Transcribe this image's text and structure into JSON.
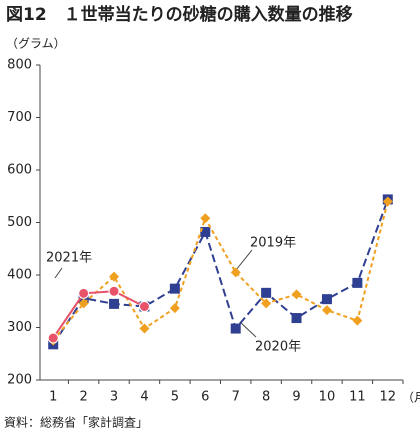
{
  "chart_data": {
    "type": "line",
    "title": "図12　１世帯当たりの砂糖の購入数量の推移",
    "ylabel": "（グラム）",
    "xlabel": "（月）",
    "source": "資料：総務省「家計調査」",
    "categories": [
      "1",
      "2",
      "3",
      "4",
      "5",
      "6",
      "7",
      "8",
      "9",
      "10",
      "11",
      "12"
    ],
    "series": [
      {
        "name": "2020年",
        "color": "#2f3f91",
        "marker": "square",
        "dash": "8,4",
        "values": [
          268,
          356,
          345,
          340,
          374,
          482,
          298,
          366,
          318,
          354,
          385,
          544
        ]
      },
      {
        "name": "2019年",
        "color": "#f0a020",
        "marker": "diamond",
        "dash": "4,3",
        "values": [
          275,
          346,
          397,
          298,
          337,
          508,
          405,
          346,
          363,
          333,
          313,
          540
        ]
      },
      {
        "name": "2021年",
        "color": "#e8536a",
        "marker": "circle",
        "dash": null,
        "values": [
          280,
          365,
          369,
          340,
          null,
          null,
          null,
          null,
          null,
          null,
          null,
          null
        ]
      }
    ],
    "ylim": [
      200,
      800
    ],
    "yticks": [
      200,
      300,
      400,
      500,
      600,
      700,
      800
    ],
    "grid": false
  }
}
